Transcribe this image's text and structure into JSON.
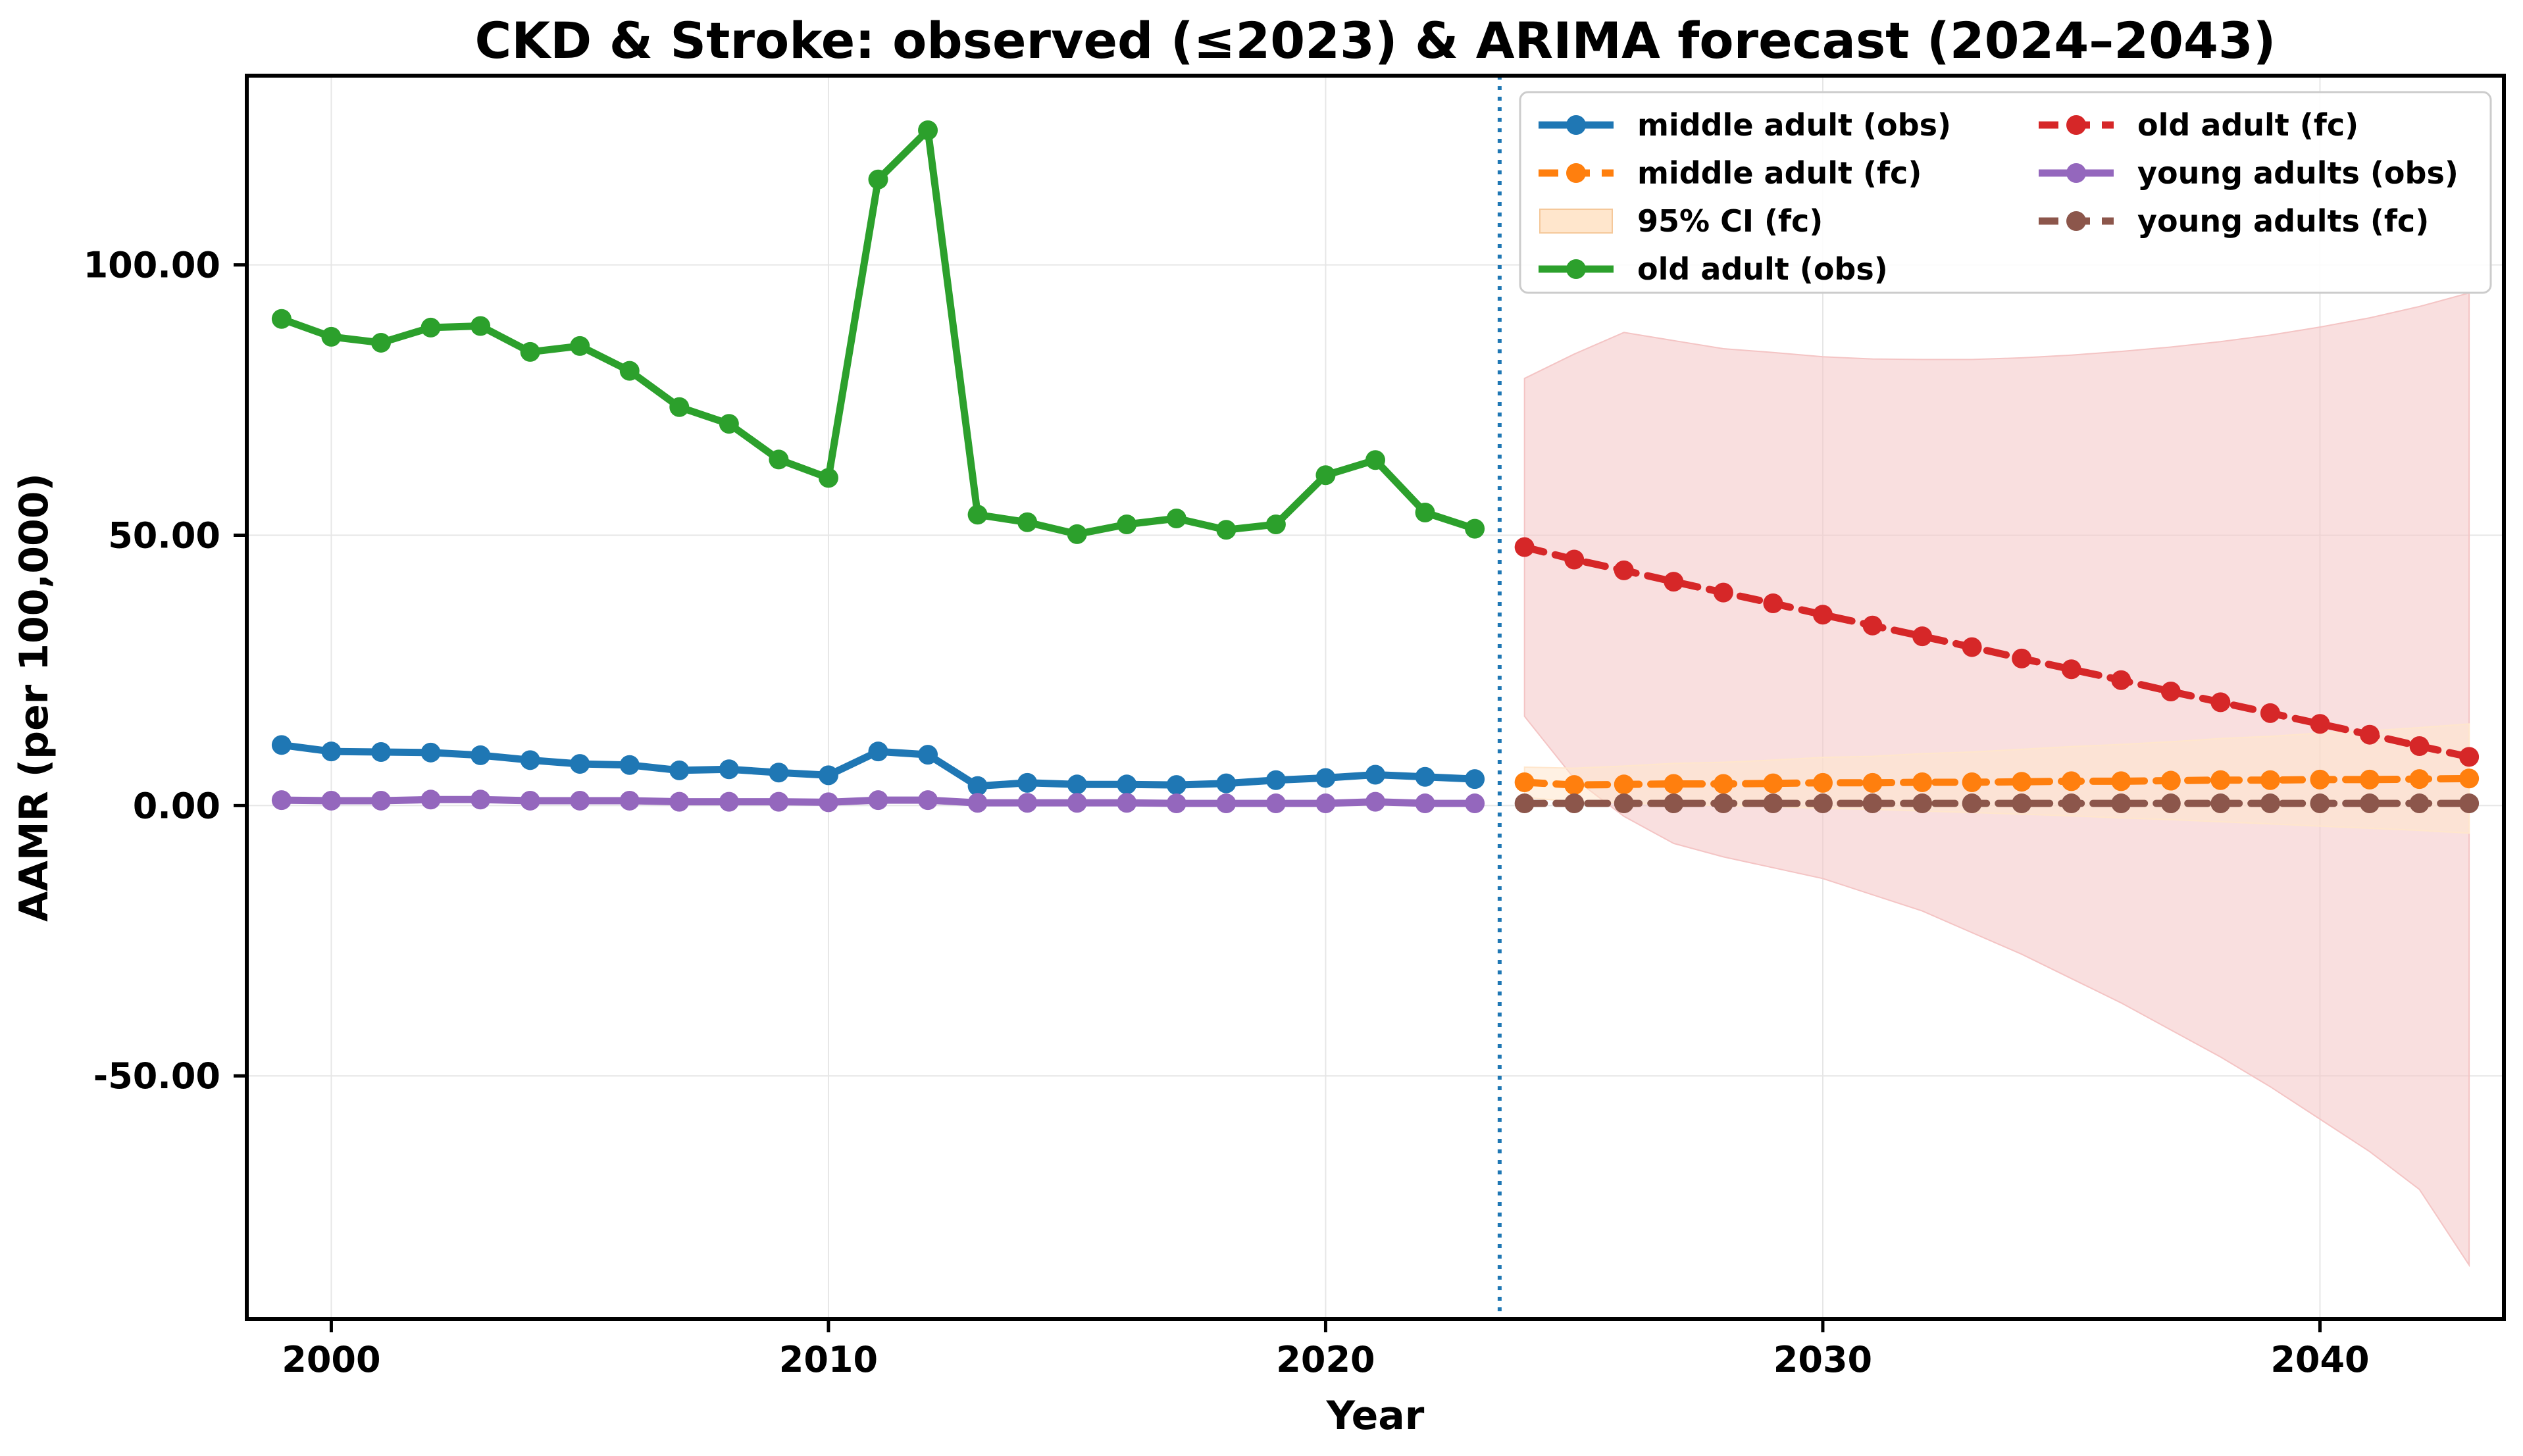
{
  "chart_data": {
    "type": "line",
    "title": "CKD & Stroke: observed (≤2023) & ARIMA forecast (2024–2043)",
    "xlabel": "Year",
    "ylabel": "AAMR (per 100,000)",
    "xlim": [
      1998.3,
      2043.7
    ],
    "ylim": [
      -95,
      135
    ],
    "xticks": [
      2000,
      2010,
      2020,
      2030,
      2040
    ],
    "yticks": [
      -50,
      0,
      50,
      100
    ],
    "ytick_format": "2 decimals",
    "grid": true,
    "legend": "upper right, 2 columns",
    "forecast_start_marker_x": 2023.5,
    "colors": {
      "middle_obs": "#1f77b4",
      "middle_fc": "#ff7f0e",
      "middle_ci": "#ffe6cc",
      "old_obs": "#2ca02c",
      "old_fc": "#d62728",
      "old_ci": "#f4c4c4",
      "young_obs": "#9467bd",
      "young_fc": "#8c564b",
      "divider": "#1f77b4"
    },
    "legend_entries": [
      {
        "label": "middle adult (obs)",
        "kind": "line",
        "color": "#1f77b4",
        "dash": false
      },
      {
        "label": "middle adult (fc)",
        "kind": "line",
        "color": "#ff7f0e",
        "dash": true
      },
      {
        "label": "95% CI (fc)",
        "kind": "patch",
        "color": "#ffe6cc"
      },
      {
        "label": "old adult (obs)",
        "kind": "line",
        "color": "#2ca02c",
        "dash": false
      },
      {
        "label": "old adult (fc)",
        "kind": "line",
        "color": "#d62728",
        "dash": true
      },
      {
        "label": "young adults (obs)",
        "kind": "line",
        "color": "#9467bd",
        "dash": false
      },
      {
        "label": "young adults (fc)",
        "kind": "line",
        "color": "#8c564b",
        "dash": true
      }
    ],
    "observed_x": [
      1999,
      2000,
      2001,
      2002,
      2003,
      2004,
      2005,
      2006,
      2007,
      2008,
      2009,
      2010,
      2011,
      2012,
      2013,
      2014,
      2015,
      2016,
      2017,
      2018,
      2019,
      2020,
      2021,
      2022,
      2023
    ],
    "forecast_x": [
      2024,
      2025,
      2026,
      2027,
      2028,
      2029,
      2030,
      2031,
      2032,
      2033,
      2034,
      2035,
      2036,
      2037,
      2038,
      2039,
      2040,
      2041,
      2042,
      2043
    ],
    "series": [
      {
        "name": "middle adult (obs)",
        "color": "#1f77b4",
        "dash": false,
        "xref": "observed_x",
        "values": [
          11.2,
          10.0,
          9.9,
          9.8,
          9.3,
          8.4,
          7.7,
          7.5,
          6.5,
          6.7,
          6.1,
          5.6,
          10.0,
          9.4,
          3.6,
          4.2,
          3.9,
          3.9,
          3.8,
          4.1,
          4.7,
          5.1,
          5.7,
          5.3,
          4.9
        ]
      },
      {
        "name": "old adult (obs)",
        "color": "#2ca02c",
        "dash": false,
        "xref": "observed_x",
        "values": [
          90.0,
          86.7,
          85.6,
          88.4,
          88.7,
          83.9,
          85.0,
          80.4,
          73.7,
          70.6,
          64.0,
          60.6,
          115.8,
          124.9,
          53.8,
          52.4,
          50.2,
          52.0,
          53.1,
          51.0,
          52.0,
          61.1,
          63.9,
          54.2,
          51.2
        ]
      },
      {
        "name": "young adults (obs)",
        "color": "#9467bd",
        "dash": false,
        "xref": "observed_x",
        "values": [
          1.0,
          0.9,
          0.9,
          1.1,
          1.1,
          0.9,
          0.9,
          0.9,
          0.7,
          0.7,
          0.7,
          0.6,
          1.0,
          1.0,
          0.5,
          0.5,
          0.5,
          0.5,
          0.4,
          0.4,
          0.4,
          0.4,
          0.7,
          0.4,
          0.4
        ]
      },
      {
        "name": "middle adult (fc)",
        "color": "#ff7f0e",
        "dash": true,
        "xref": "forecast_x",
        "values": [
          4.3,
          3.8,
          3.9,
          4.0,
          4.0,
          4.1,
          4.2,
          4.2,
          4.3,
          4.3,
          4.4,
          4.5,
          4.5,
          4.6,
          4.7,
          4.7,
          4.8,
          4.8,
          4.9,
          5.0
        ]
      },
      {
        "name": "old adult (fc)",
        "color": "#d62728",
        "dash": true,
        "xref": "forecast_x",
        "values": [
          47.8,
          45.5,
          43.5,
          41.4,
          39.4,
          37.4,
          35.3,
          33.3,
          31.3,
          29.3,
          27.2,
          25.2,
          23.2,
          21.1,
          19.1,
          17.1,
          15.1,
          13.1,
          11.0,
          9.0
        ]
      },
      {
        "name": "young adults (fc)",
        "color": "#8c564b",
        "dash": true,
        "xref": "forecast_x",
        "values": [
          0.4,
          0.4,
          0.4,
          0.4,
          0.4,
          0.4,
          0.4,
          0.4,
          0.4,
          0.4,
          0.4,
          0.4,
          0.4,
          0.4,
          0.4,
          0.4,
          0.4,
          0.4,
          0.4,
          0.4
        ]
      }
    ],
    "ci_bands": [
      {
        "name": "old adult 95% CI",
        "color": "#f4c4c4",
        "xref": "forecast_x",
        "lower": [
          16.5,
          5.0,
          -2.0,
          -7.0,
          -9.5,
          -11.5,
          -13.5,
          -16.5,
          -19.5,
          -23.5,
          -27.5,
          -32.0,
          -36.5,
          -41.5,
          -46.5,
          -52.0,
          -58.0,
          -64.0,
          -71.0,
          -85.0
        ],
        "upper": [
          79.0,
          83.5,
          87.5,
          86.0,
          84.5,
          83.8,
          83.0,
          82.6,
          82.5,
          82.5,
          82.8,
          83.3,
          84.0,
          84.8,
          85.8,
          87.0,
          88.5,
          90.2,
          92.3,
          94.8
        ]
      },
      {
        "name": "middle adult 95% CI",
        "color": "#ffe6cc",
        "xref": "forecast_x",
        "lower": [
          1.5,
          0.7,
          0.5,
          0.2,
          0.0,
          -0.2,
          -0.5,
          -0.7,
          -1.0,
          -1.3,
          -1.6,
          -1.9,
          -2.3,
          -2.6,
          -3.0,
          -3.4,
          -3.8,
          -4.2,
          -4.6,
          -5.1
        ],
        "upper": [
          7.1,
          6.9,
          7.3,
          7.8,
          8.0,
          8.4,
          8.9,
          9.1,
          9.6,
          9.9,
          10.4,
          10.9,
          11.3,
          11.8,
          12.4,
          12.8,
          13.4,
          13.8,
          14.4,
          15.1
        ]
      }
    ]
  }
}
